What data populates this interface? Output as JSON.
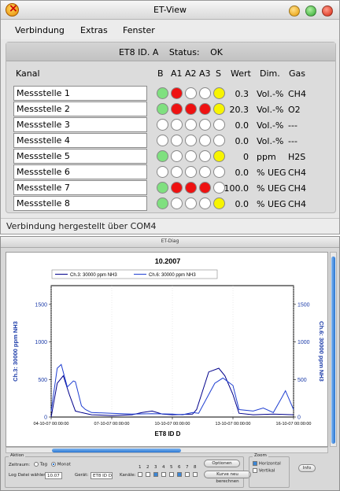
{
  "window": {
    "title": "ET-View"
  },
  "menu": [
    "Verbindung",
    "Extras",
    "Fenster"
  ],
  "panel": {
    "device": "ET8 ID. A",
    "status_label": "Status:",
    "status_value": "OK"
  },
  "columns": {
    "kanal": "Kanal",
    "b": "B",
    "a1": "A1",
    "a2": "A2",
    "a3": "A3",
    "s": "S",
    "wert": "Wert",
    "dim": "Dim.",
    "gas": "Gas"
  },
  "colors": {
    "green": "#7fe07f",
    "red": "#ee1111",
    "yellow": "#f7f400",
    "white": "#ffffff",
    "series_dark": "#00008b",
    "series_blue": "#1f3fd1",
    "axis_label": "#1a3aa8"
  },
  "channels": [
    {
      "name": "Messstelle 1",
      "leds": [
        "green",
        "red",
        "white",
        "white",
        "yellow"
      ],
      "wert": "0.3",
      "dim": "Vol.-%",
      "gas": "CH4"
    },
    {
      "name": "Messstelle 2",
      "leds": [
        "green",
        "red",
        "red",
        "red",
        "yellow"
      ],
      "wert": "20.3",
      "dim": "Vol.-%",
      "gas": "O2"
    },
    {
      "name": "Messstelle 3",
      "leds": [
        "white",
        "white",
        "white",
        "white",
        "white"
      ],
      "wert": "0.0",
      "dim": "Vol.-%",
      "gas": "---"
    },
    {
      "name": "Messstelle 4",
      "leds": [
        "white",
        "white",
        "white",
        "white",
        "white"
      ],
      "wert": "0.0",
      "dim": "Vol.-%",
      "gas": "---"
    },
    {
      "name": "Messstelle 5",
      "leds": [
        "green",
        "white",
        "white",
        "white",
        "yellow"
      ],
      "wert": "0",
      "dim": "ppm",
      "gas": "H2S"
    },
    {
      "name": "Messstelle 6",
      "leds": [
        "white",
        "white",
        "white",
        "white",
        "white"
      ],
      "wert": "0.0",
      "dim": "% UEG",
      "gas": "CH4"
    },
    {
      "name": "Messstelle 7",
      "leds": [
        "green",
        "red",
        "red",
        "red",
        "white"
      ],
      "wert": "100.0",
      "dim": "% UEG",
      "gas": "CH4"
    },
    {
      "name": "Messstelle 8",
      "leds": [
        "green",
        "white",
        "white",
        "white",
        "yellow"
      ],
      "wert": "0.0",
      "dim": "% UEG",
      "gas": "CH4"
    }
  ],
  "statusbar": "Verbindung hergestellt über COM4",
  "diag_window": {
    "title": "ET-Diag"
  },
  "chart_data": {
    "type": "line",
    "title": "10.2007",
    "xlabel": "ET8 ID D",
    "ylabel_left": "Ch.3: 30000 ppm NH3",
    "ylabel_right": "Ch.6: 30000 ppm NH3",
    "ylim": [
      0,
      1750
    ],
    "y_ticks": [
      "0",
      "500",
      "1000",
      "1500"
    ],
    "x_ticks": [
      "04-10-07 00:00:00",
      "07-10-07 00:00:00",
      "10-10-07 00:00:00",
      "13-10-07 00:00:00",
      "16-10-07 00:00:00"
    ],
    "legend": [
      "Ch.3: 30000 ppm NH3",
      "Ch.6: 30000 ppm NH3"
    ],
    "legend_position": "top-center",
    "grid": false,
    "series": [
      {
        "name": "Ch.3: 30000 ppm NH3",
        "points": [
          [
            0,
            0
          ],
          [
            0.3,
            450
          ],
          [
            0.6,
            550
          ],
          [
            0.9,
            300
          ],
          [
            1.2,
            80
          ],
          [
            1.5,
            60
          ],
          [
            2,
            30
          ],
          [
            3,
            20
          ],
          [
            4,
            30
          ],
          [
            4.5,
            60
          ],
          [
            5,
            80
          ],
          [
            5.5,
            40
          ],
          [
            6,
            30
          ],
          [
            7,
            40
          ],
          [
            7.2,
            100
          ],
          [
            7.5,
            350
          ],
          [
            7.8,
            600
          ],
          [
            8.3,
            650
          ],
          [
            8.6,
            550
          ],
          [
            9,
            300
          ],
          [
            9.3,
            50
          ],
          [
            10,
            30
          ],
          [
            11,
            40
          ],
          [
            12,
            30
          ]
        ]
      },
      {
        "name": "Ch.6: 30000 ppm NH3",
        "points": [
          [
            0,
            80
          ],
          [
            0.3,
            650
          ],
          [
            0.5,
            700
          ],
          [
            0.8,
            400
          ],
          [
            1.1,
            480
          ],
          [
            1.2,
            470
          ],
          [
            1.5,
            150
          ],
          [
            1.7,
            100
          ],
          [
            2,
            60
          ],
          [
            3,
            50
          ],
          [
            4,
            40
          ],
          [
            5,
            45
          ],
          [
            6,
            40
          ],
          [
            6.5,
            30
          ],
          [
            7,
            60
          ],
          [
            7.3,
            50
          ],
          [
            7.8,
            300
          ],
          [
            8.1,
            450
          ],
          [
            8.5,
            520
          ],
          [
            9,
            420
          ],
          [
            9.3,
            100
          ],
          [
            10,
            80
          ],
          [
            10.5,
            120
          ],
          [
            11,
            60
          ],
          [
            11.4,
            250
          ],
          [
            11.6,
            350
          ],
          [
            12,
            100
          ]
        ]
      }
    ]
  },
  "controls": {
    "aktion": "Aktion",
    "zeitraum": "Zeitraum:",
    "tag": "Tag",
    "monat": "Monat",
    "log_label": "Log Datei wählen:",
    "log_value": "10.07",
    "geraet_label": "Gerät:",
    "geraet_value": "ET8 ID D",
    "kanaele_label": "Kanäle:",
    "kanal_numbers": [
      "1",
      "2",
      "3",
      "4",
      "5",
      "6",
      "7",
      "8"
    ],
    "kanal_checked": [
      false,
      false,
      true,
      false,
      false,
      true,
      false,
      false
    ],
    "optionen": "Optionen",
    "neu_berechnen": "Kurve neu berechnen",
    "zoom": "Zoom",
    "horizontal": "Horizontal",
    "vertikal": "Vertikal",
    "info": "Info"
  }
}
